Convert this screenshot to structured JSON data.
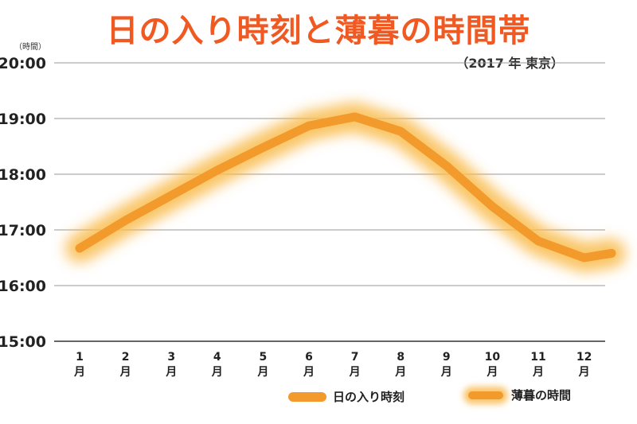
{
  "header": {
    "title": "日の入り時刻と薄暮の時間帯",
    "subtitle": "（2017 年 東京）"
  },
  "chart_data": {
    "type": "line",
    "title": "日の入り時刻と薄暮の時間帯",
    "subtitle": "（2017 年 東京）",
    "ylabel": "（時間）",
    "xlabel": "",
    "y_ticks": [
      "20:00",
      "19:00",
      "18:00",
      "17:00",
      "16:00",
      "15:00"
    ],
    "ylim": [
      15,
      20
    ],
    "categories": [
      "1月",
      "2月",
      "3月",
      "4月",
      "5月",
      "6月",
      "7月",
      "8月",
      "9月",
      "10月",
      "11月",
      "12月"
    ],
    "category_labels": [
      {
        "num": "1",
        "unit": "月"
      },
      {
        "num": "2",
        "unit": "月"
      },
      {
        "num": "3",
        "unit": "月"
      },
      {
        "num": "4",
        "unit": "月"
      },
      {
        "num": "5",
        "unit": "月"
      },
      {
        "num": "6",
        "unit": "月"
      },
      {
        "num": "7",
        "unit": "月"
      },
      {
        "num": "8",
        "unit": "月"
      },
      {
        "num": "9",
        "unit": "月"
      },
      {
        "num": "10",
        "unit": "月"
      },
      {
        "num": "11",
        "unit": "月"
      },
      {
        "num": "12",
        "unit": "月"
      }
    ],
    "series": [
      {
        "name": "日の入り時刻",
        "values": [
          16.67,
          17.17,
          17.62,
          18.07,
          18.48,
          18.87,
          19.03,
          18.77,
          18.15,
          17.42,
          16.8,
          16.5
        ]
      }
    ],
    "series_end_value": 16.58,
    "glow_label": "薄暮の時間",
    "grid": true,
    "legend_position": "bottom",
    "colors": {
      "line": "#f39a2d",
      "glow": "#f8b23a",
      "title": "#f05a22",
      "grid": "#999999"
    }
  },
  "legend": {
    "line_label": "日の入り時刻",
    "glow_label": "薄暮の時間"
  }
}
